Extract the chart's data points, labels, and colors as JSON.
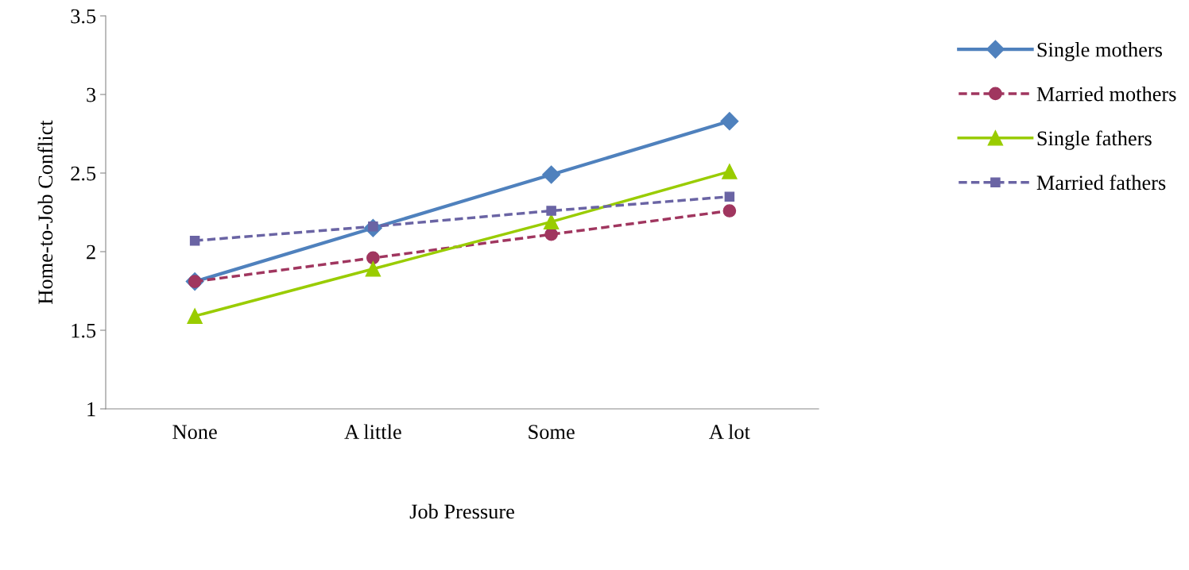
{
  "chart_data": {
    "type": "line",
    "xlabel": "Job Pressure",
    "ylabel": "Home-to-Job Conflict",
    "categories": [
      "None",
      "A little",
      "Some",
      "A lot"
    ],
    "ylim": [
      1,
      3.5
    ],
    "yticks": [
      1,
      1.5,
      2,
      2.5,
      3,
      3.5
    ],
    "grid": false,
    "legend": "right",
    "series": [
      {
        "name": "Single mothers",
        "color": "#4f81bd",
        "marker": "diamond",
        "line_style": "solid",
        "values": [
          1.81,
          2.15,
          2.49,
          2.83
        ]
      },
      {
        "name": "Married mothers",
        "color": "#a0365f",
        "marker": "circle",
        "line_style": "dashed",
        "values": [
          1.81,
          1.96,
          2.11,
          2.26
        ]
      },
      {
        "name": "Single fathers",
        "color": "#99cc00",
        "marker": "triangle",
        "line_style": "solid",
        "values": [
          1.59,
          1.89,
          2.19,
          2.51
        ]
      },
      {
        "name": "Married fathers",
        "color": "#6a64a4",
        "marker": "square",
        "line_style": "dashed",
        "values": [
          2.07,
          2.16,
          2.26,
          2.35
        ]
      }
    ]
  }
}
